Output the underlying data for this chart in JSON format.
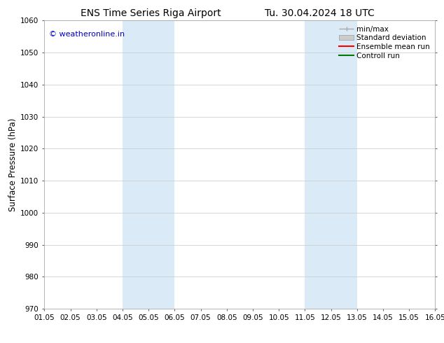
{
  "title_left": "ENS Time Series Riga Airport",
  "title_right": "Tu. 30.04.2024 18 UTC",
  "ylabel": "Surface Pressure (hPa)",
  "ylim": [
    970,
    1060
  ],
  "yticks": [
    970,
    980,
    990,
    1000,
    1010,
    1020,
    1030,
    1040,
    1050,
    1060
  ],
  "xtick_labels": [
    "01.05",
    "02.05",
    "03.05",
    "04.05",
    "05.05",
    "06.05",
    "07.05",
    "08.05",
    "09.05",
    "10.05",
    "11.05",
    "12.05",
    "13.05",
    "14.05",
    "15.05",
    "16.05"
  ],
  "n_xticks": 16,
  "shaded_regions": [
    {
      "xstart": 3,
      "xend": 5,
      "color": "#daeaf7"
    },
    {
      "xstart": 10,
      "xend": 12,
      "color": "#daeaf7"
    }
  ],
  "watermark_text": "© weatheronline.in",
  "watermark_color": "#0000bb",
  "background_color": "#ffffff",
  "plot_bg_color": "#ffffff",
  "grid_color": "#c8c8c8",
  "legend_items": [
    {
      "label": "min/max",
      "color": "#aaaaaa",
      "type": "errorbar"
    },
    {
      "label": "Standard deviation",
      "color": "#cccccc",
      "type": "bar"
    },
    {
      "label": "Ensemble mean run",
      "color": "#ff0000",
      "type": "line"
    },
    {
      "label": "Controll run",
      "color": "#007700",
      "type": "line"
    }
  ],
  "title_fontsize": 10,
  "tick_fontsize": 7.5,
  "ylabel_fontsize": 8.5,
  "legend_fontsize": 7.5,
  "watermark_fontsize": 8
}
